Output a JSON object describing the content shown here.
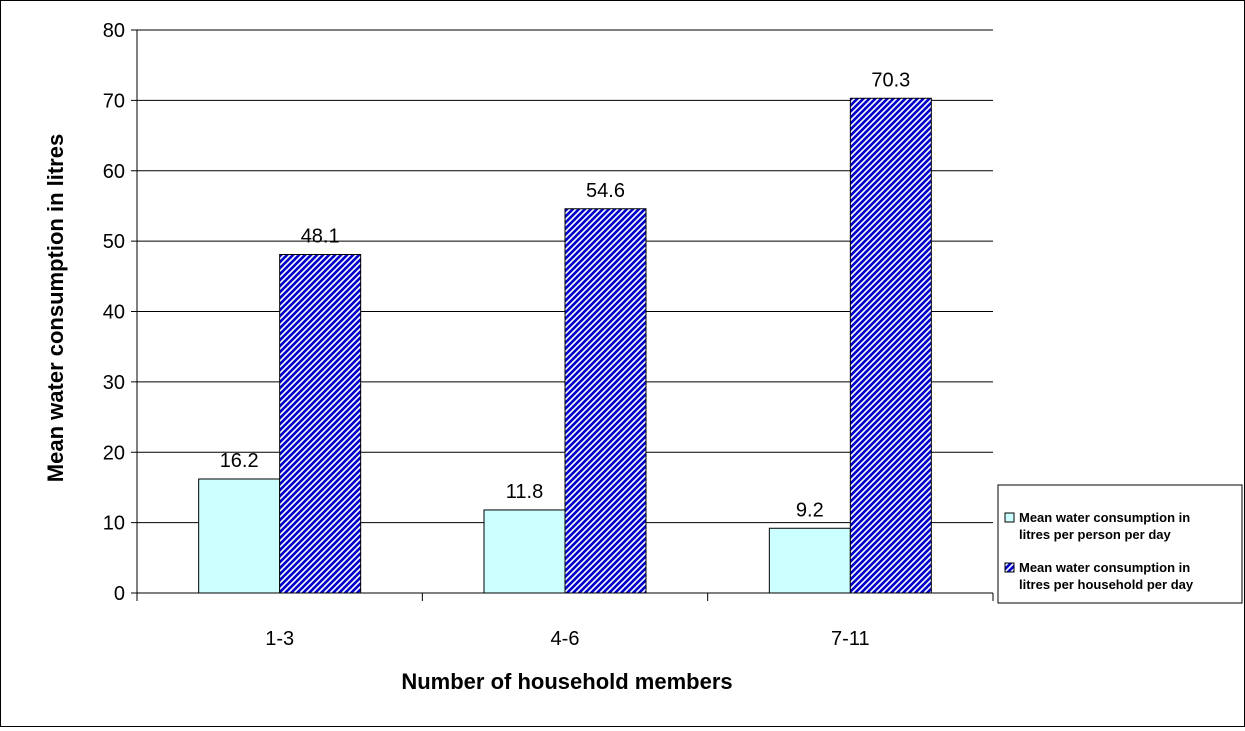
{
  "chart_data": {
    "type": "bar",
    "title": "",
    "xlabel": "Number of household members",
    "ylabel": "Mean water consumption in litres",
    "categories": [
      "1-3",
      "4-6",
      "7-11"
    ],
    "series": [
      {
        "name": "Mean water consumption in litres per person per day",
        "values": [
          16.2,
          11.8,
          9.2
        ],
        "color": "#ccffff",
        "pattern": "solid"
      },
      {
        "name": "Mean water consumption in litres per household per day",
        "values": [
          48.1,
          54.6,
          70.3
        ],
        "color": "#0000cc",
        "pattern": "diagonal-hatch"
      }
    ],
    "ylim": [
      0,
      80
    ],
    "yticks": [
      0,
      10,
      20,
      30,
      40,
      50,
      60,
      70,
      80
    ],
    "grid": true,
    "legend_position": "right",
    "data_labels": true
  }
}
